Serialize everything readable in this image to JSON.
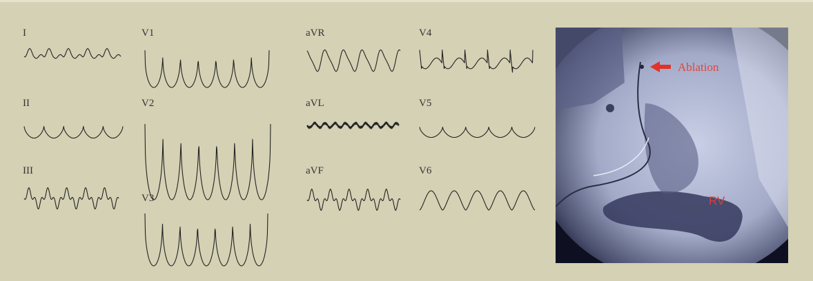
{
  "leads": [
    {
      "label": "I"
    },
    {
      "label": "II"
    },
    {
      "label": "III"
    },
    {
      "label": "V1"
    },
    {
      "label": "V2"
    },
    {
      "label": "V3"
    },
    {
      "label": "aVR"
    },
    {
      "label": "aVL"
    },
    {
      "label": "aVF"
    },
    {
      "label": "V4"
    },
    {
      "label": "V5"
    },
    {
      "label": "V6"
    }
  ],
  "image": {
    "annotations": {
      "arrow_label": "Ablation",
      "chamber_label": "RV"
    }
  }
}
